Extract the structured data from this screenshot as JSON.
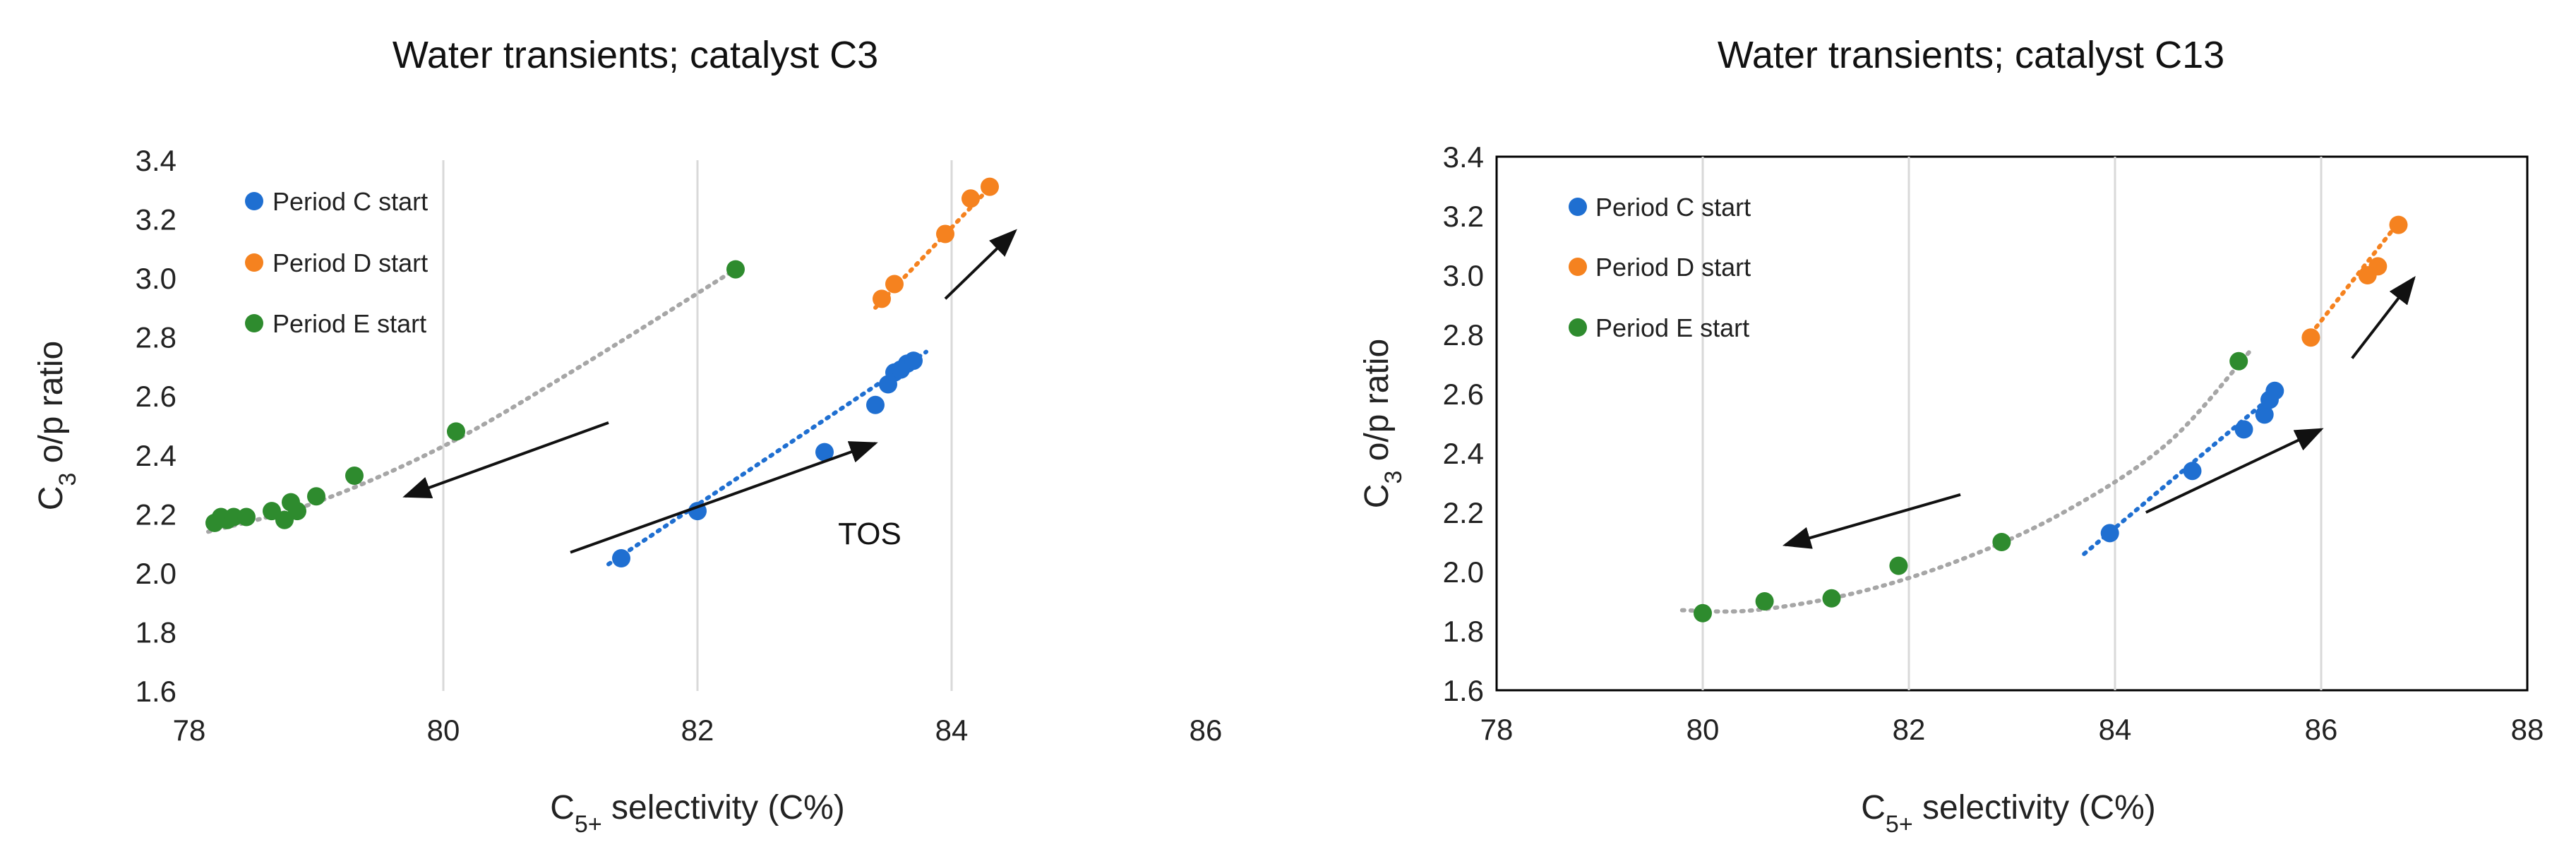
{
  "colors": {
    "period_c": "#1f6fd1",
    "period_d": "#f5821f",
    "period_e": "#2e8b2e",
    "trend_e": "#a6a6a6",
    "grid": "#d9d9d9",
    "arrow": "#111111"
  },
  "chart_data": [
    {
      "type": "scatter",
      "title": "Water transients; catalyst C3",
      "xlabel": {
        "main": "C",
        "sub": "5+",
        "rest": " selectivity (C%)"
      },
      "ylabel": {
        "main": "C",
        "sub": "3",
        "rest": " o/p ratio"
      },
      "xlim": [
        78,
        86
      ],
      "ylim": [
        1.6,
        3.4
      ],
      "xticks": [
        "78",
        "80",
        "82",
        "84",
        "86"
      ],
      "yticks": [
        "1.6",
        "1.8",
        "2.0",
        "2.2",
        "2.4",
        "2.6",
        "2.8",
        "3.0",
        "3.2",
        "3.4"
      ],
      "legend": [
        "Period C start",
        "Period D start",
        "Period E start"
      ],
      "annotation": "TOS",
      "series": [
        {
          "name": "Period C start",
          "x": [
            81.4,
            82.0,
            83.0,
            83.4,
            83.5,
            83.55,
            83.6,
            83.65,
            83.7
          ],
          "y": [
            2.05,
            2.21,
            2.41,
            2.57,
            2.64,
            2.68,
            2.69,
            2.71,
            2.72
          ]
        },
        {
          "name": "Period D start",
          "x": [
            83.45,
            83.55,
            83.95,
            84.15,
            84.3
          ],
          "y": [
            2.93,
            2.98,
            3.15,
            3.27,
            3.31
          ]
        },
        {
          "name": "Period E start",
          "x": [
            78.2,
            78.25,
            78.3,
            78.35,
            78.45,
            78.65,
            78.75,
            78.8,
            78.85,
            79.0,
            79.3,
            80.1,
            82.3
          ],
          "y": [
            2.17,
            2.19,
            2.18,
            2.19,
            2.19,
            2.21,
            2.18,
            2.24,
            2.21,
            2.26,
            2.33,
            2.48,
            3.03
          ]
        }
      ],
      "trendlines": [
        {
          "series": "Period C start",
          "x": [
            81.3,
            83.8
          ],
          "y": [
            2.03,
            2.75
          ]
        },
        {
          "series": "Period D start",
          "x": [
            83.4,
            84.35
          ],
          "y": [
            2.9,
            3.33
          ]
        },
        {
          "series": "Period E start",
          "type": "curve",
          "x": [
            78.15,
            79.0,
            80.0,
            81.0,
            82.3
          ],
          "y": [
            2.14,
            2.24,
            2.43,
            2.68,
            3.03
          ]
        }
      ],
      "arrows": [
        {
          "from": [
            81.3,
            2.51
          ],
          "to": [
            79.7,
            2.26
          ]
        },
        {
          "from": [
            81.0,
            2.07
          ],
          "to": [
            83.4,
            2.44
          ]
        },
        {
          "from": [
            83.95,
            2.93
          ],
          "to": [
            84.5,
            3.16
          ]
        }
      ]
    },
    {
      "type": "scatter",
      "title": "Water transients; catalyst C13",
      "xlabel": {
        "main": "C",
        "sub": "5+",
        "rest": " selectivity (C%)"
      },
      "ylabel": {
        "main": "C",
        "sub": "3",
        "rest": " o/p ratio"
      },
      "xlim": [
        78,
        88
      ],
      "ylim": [
        1.6,
        3.4
      ],
      "xticks": [
        "78",
        "80",
        "82",
        "84",
        "86",
        "88"
      ],
      "yticks": [
        "1.6",
        "1.8",
        "2.0",
        "2.2",
        "2.4",
        "2.6",
        "2.8",
        "3.0",
        "3.2",
        "3.4"
      ],
      "legend": [
        "Period C start",
        "Period D start",
        "Period E start"
      ],
      "series": [
        {
          "name": "Period C start",
          "x": [
            83.95,
            84.75,
            85.25,
            85.45,
            85.5,
            85.55
          ],
          "y": [
            2.13,
            2.34,
            2.48,
            2.53,
            2.58,
            2.61
          ]
        },
        {
          "name": "Period D start",
          "x": [
            85.9,
            86.45,
            86.55,
            86.75
          ],
          "y": [
            2.79,
            3.0,
            3.03,
            3.17
          ]
        },
        {
          "name": "Period E start",
          "x": [
            80.0,
            80.6,
            81.25,
            81.9,
            82.9,
            85.2
          ],
          "y": [
            1.86,
            1.9,
            1.91,
            2.02,
            2.1,
            2.71
          ]
        }
      ],
      "trendlines": [
        {
          "series": "Period C start",
          "x": [
            83.7,
            85.65
          ],
          "y": [
            2.06,
            2.63
          ]
        },
        {
          "series": "Period D start",
          "x": [
            85.85,
            86.8
          ],
          "y": [
            2.78,
            3.2
          ]
        },
        {
          "series": "Period E start",
          "type": "curve",
          "x": [
            79.8,
            80.5,
            81.5,
            82.5,
            83.5,
            84.5,
            85.3
          ],
          "y": [
            1.87,
            1.87,
            1.93,
            2.04,
            2.2,
            2.43,
            2.74
          ]
        }
      ],
      "arrows": [
        {
          "from": [
            82.5,
            2.26
          ],
          "to": [
            80.8,
            2.09
          ]
        },
        {
          "from": [
            84.3,
            2.2
          ],
          "to": [
            86.0,
            2.48
          ]
        },
        {
          "from": [
            86.3,
            2.72
          ],
          "to": [
            86.9,
            2.99
          ]
        }
      ]
    }
  ]
}
